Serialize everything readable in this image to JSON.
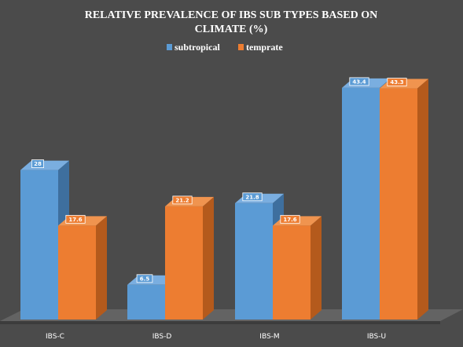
{
  "chart_data": {
    "type": "bar",
    "title_line1": "RELATIVE PREVALENCE OF IBS SUB TYPES BASED ON",
    "title_line2": "CLIMATE (%)",
    "xlabel": "",
    "ylabel": "",
    "categories": [
      "IBS-C",
      "IBS-D",
      "IBS-M",
      "IBS-U"
    ],
    "series": [
      {
        "name": "subtropical",
        "values": [
          28,
          6.5,
          21.8,
          43.4
        ],
        "color": "#5b9bd5",
        "side": "#3e6f9e",
        "top": "#7aaee0"
      },
      {
        "name": "temprate",
        "values": [
          17.6,
          21.2,
          17.6,
          43.3
        ],
        "color": "#ed7d31",
        "side": "#b45a1c",
        "top": "#f0944f"
      }
    ],
    "ylim": [
      0,
      45
    ],
    "grid": false,
    "legend_position": "top"
  }
}
